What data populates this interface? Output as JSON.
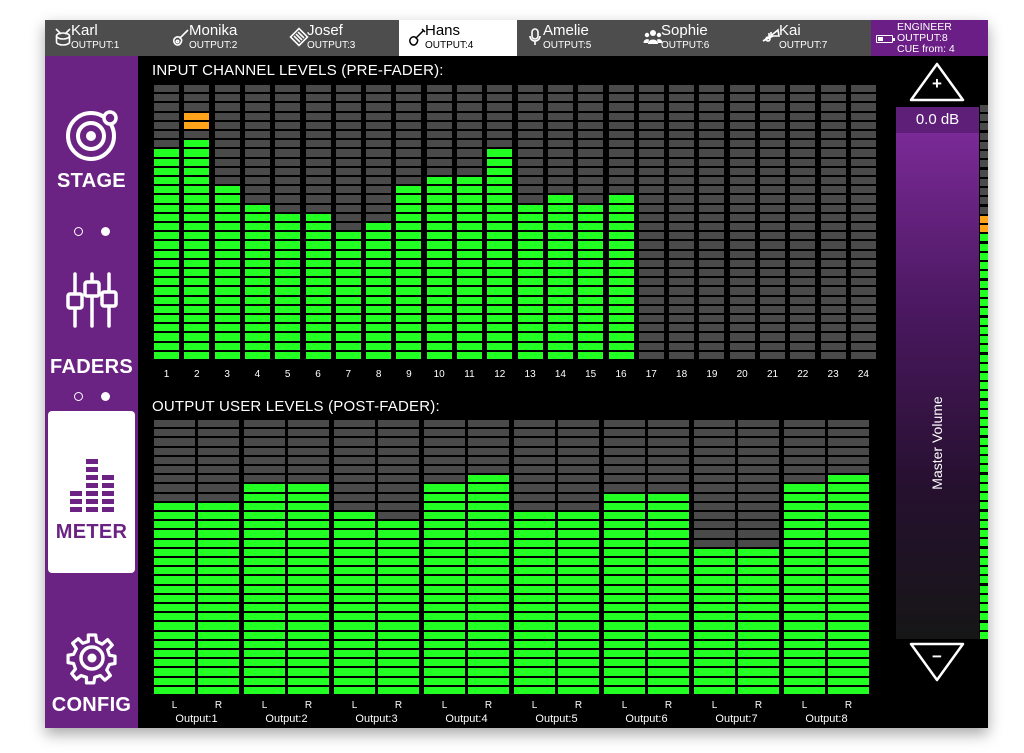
{
  "users": [
    {
      "name": "Karl",
      "output": "OUTPUT:1",
      "icon": "drum-icon",
      "active": false
    },
    {
      "name": "Monika",
      "output": "OUTPUT:2",
      "icon": "guitar-icon",
      "active": false
    },
    {
      "name": "Josef",
      "output": "OUTPUT:3",
      "icon": "keyboard-icon",
      "active": false
    },
    {
      "name": "Hans",
      "output": "OUTPUT:4",
      "icon": "bass-guitar-icon",
      "active": true
    },
    {
      "name": "Amelie",
      "output": "OUTPUT:5",
      "icon": "microphone-icon",
      "active": false
    },
    {
      "name": "Sophie",
      "output": "OUTPUT:6",
      "icon": "group-icon",
      "active": false
    },
    {
      "name": "Kai",
      "output": "OUTPUT:7",
      "icon": "trumpet-icon",
      "active": false
    }
  ],
  "engineer": {
    "title": "ENGINEER",
    "output": "OUTPUT:8",
    "cue": "CUE from: 4"
  },
  "nav": {
    "stage": "STAGE",
    "faders": "FADERS",
    "meter": "METER",
    "config": "CONFIG",
    "active": "meter"
  },
  "input_section_title": "INPUT CHANNEL LEVELS (PRE-FADER):",
  "output_section_title": "OUTPUT USER LEVELS (POST-FADER):",
  "input_channels": [
    {
      "label": "1",
      "level": 23,
      "peak": 0
    },
    {
      "label": "2",
      "level": 24,
      "peak": 27
    },
    {
      "label": "3",
      "level": 19,
      "peak": 0
    },
    {
      "label": "4",
      "level": 17,
      "peak": 0
    },
    {
      "label": "5",
      "level": 16,
      "peak": 0
    },
    {
      "label": "6",
      "level": 16,
      "peak": 0
    },
    {
      "label": "7",
      "level": 14,
      "peak": 0
    },
    {
      "label": "8",
      "level": 15,
      "peak": 0
    },
    {
      "label": "9",
      "level": 19,
      "peak": 0
    },
    {
      "label": "10",
      "level": 20,
      "peak": 0
    },
    {
      "label": "11",
      "level": 20,
      "peak": 0
    },
    {
      "label": "12",
      "level": 23,
      "peak": 0
    },
    {
      "label": "13",
      "level": 17,
      "peak": 0
    },
    {
      "label": "14",
      "level": 18,
      "peak": 0
    },
    {
      "label": "15",
      "level": 17,
      "peak": 0
    },
    {
      "label": "16",
      "level": 18,
      "peak": 0
    },
    {
      "label": "17",
      "level": 0,
      "peak": 0
    },
    {
      "label": "18",
      "level": 0,
      "peak": 0
    },
    {
      "label": "19",
      "level": 0,
      "peak": 0
    },
    {
      "label": "20",
      "level": 0,
      "peak": 0
    },
    {
      "label": "21",
      "level": 0,
      "peak": 0
    },
    {
      "label": "22",
      "level": 0,
      "peak": 0
    },
    {
      "label": "23",
      "level": 0,
      "peak": 0
    },
    {
      "label": "24",
      "level": 0,
      "peak": 0
    }
  ],
  "input_meter_segments": 30,
  "outputs": [
    {
      "name": "Output:1",
      "left_label": "L",
      "right_label": "R",
      "left_level": 21,
      "right_level": 21
    },
    {
      "name": "Output:2",
      "left_label": "L",
      "right_label": "R",
      "left_level": 23,
      "right_level": 23
    },
    {
      "name": "Output:3",
      "left_label": "L",
      "right_label": "R",
      "left_level": 20,
      "right_level": 19
    },
    {
      "name": "Output:4",
      "left_label": "L",
      "right_label": "R",
      "left_level": 23,
      "right_level": 24
    },
    {
      "name": "Output:5",
      "left_label": "L",
      "right_label": "R",
      "left_level": 20,
      "right_level": 20
    },
    {
      "name": "Output:6",
      "left_label": "L",
      "right_label": "R",
      "left_level": 22,
      "right_level": 22
    },
    {
      "name": "Output:7",
      "left_label": "L",
      "right_label": "R",
      "left_level": 16,
      "right_level": 16
    },
    {
      "name": "Output:8",
      "left_label": "L",
      "right_label": "R",
      "left_level": 23,
      "right_level": 24
    }
  ],
  "output_meter_segments": 30,
  "master": {
    "db_value": "0.0 dB",
    "label": "Master Volume",
    "up_symbol": "+",
    "down_symbol": "−",
    "meter_level": 45,
    "meter_peak": 46,
    "meter_segments": 58
  },
  "colors": {
    "accent": "#6b2383",
    "meter_on": "#22ff22",
    "meter_off": "#4a4a4a",
    "meter_peak": "#ffa31a",
    "topbar": "#4d4d4d"
  }
}
